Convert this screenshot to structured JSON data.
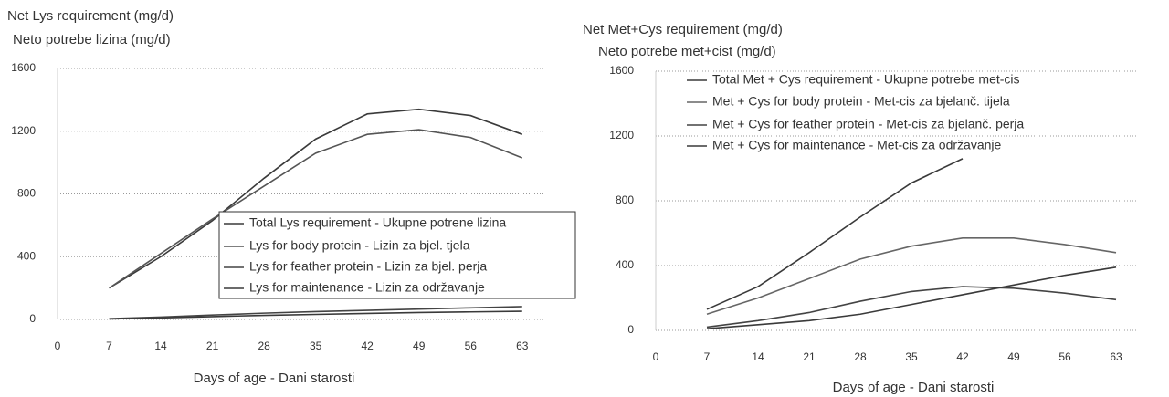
{
  "chart_data": [
    {
      "type": "line",
      "ylabel": [
        "Net Lys requirement (mg/d)",
        "Neto potrebe lizina (mg/d)"
      ],
      "xlabel": "Days of age - Dani starosti",
      "x": [
        7,
        14,
        21,
        28,
        35,
        42,
        49,
        56,
        63
      ],
      "xlim": [
        0,
        66
      ],
      "xticks": [
        0,
        7,
        14,
        21,
        28,
        35,
        42,
        49,
        56,
        63
      ],
      "ylim": [
        0,
        1600
      ],
      "yticks": [
        0,
        400,
        800,
        1200,
        1600
      ],
      "grid": true,
      "legend": "box",
      "series": [
        {
          "name": "Total Lys requirement - Ukupne potrene lizina",
          "color": "#3a3a3a",
          "values": [
            200,
            400,
            630,
            900,
            1150,
            1310,
            1340,
            1300,
            1180
          ]
        },
        {
          "name": "Lys for body protein - Lizin za bjel. tjela",
          "color": "#555555",
          "values": [
            200,
            420,
            640,
            850,
            1060,
            1180,
            1210,
            1160,
            1030
          ]
        },
        {
          "name": "Lys for feather protein - Lizin za bjel. perja",
          "color": "#444444",
          "values": [
            5,
            15,
            28,
            40,
            50,
            58,
            66,
            74,
            82
          ]
        },
        {
          "name": "Lys for maintenance - Lizin za održavanje",
          "color": "#3a3a3a",
          "values": [
            3,
            10,
            18,
            26,
            32,
            38,
            44,
            48,
            52
          ]
        }
      ]
    },
    {
      "type": "line",
      "ylabel": [
        "Net Met+Cys requirement (mg/d)",
        "Neto potrebe met+cist (mg/d)"
      ],
      "xlabel": "Days of age - Dani starosti",
      "x": [
        7,
        14,
        21,
        28,
        35,
        42,
        49,
        56,
        63
      ],
      "xlim": [
        0,
        66
      ],
      "xticks": [
        0,
        7,
        14,
        21,
        28,
        35,
        42,
        49,
        56,
        63
      ],
      "ylim": [
        0,
        1600
      ],
      "yticks": [
        0,
        400,
        800,
        1200,
        1600
      ],
      "grid": true,
      "legend": "plain",
      "series": [
        {
          "name": "Total Met + Cys requirement - Ukupne potrebe met-cis",
          "color": "#3a3a3a",
          "values": [
            130,
            270,
            480,
            700,
            910,
            1060,
            null,
            null,
            null
          ]
        },
        {
          "name": "Met + Cys for body protein - Met-cis za bjelanč. tijela",
          "color": "#666666",
          "values": [
            100,
            200,
            320,
            440,
            520,
            570,
            570,
            530,
            480
          ]
        },
        {
          "name": "Met + Cys for feather protein - Met-cis za bjelanč. perja",
          "color": "#444444",
          "values": [
            20,
            60,
            110,
            180,
            240,
            270,
            260,
            230,
            190
          ]
        },
        {
          "name": "Met + Cys for maintenance - Met-cis za održavanje",
          "color": "#3a3a3a",
          "values": [
            10,
            35,
            60,
            100,
            160,
            220,
            280,
            340,
            390
          ]
        }
      ]
    }
  ]
}
